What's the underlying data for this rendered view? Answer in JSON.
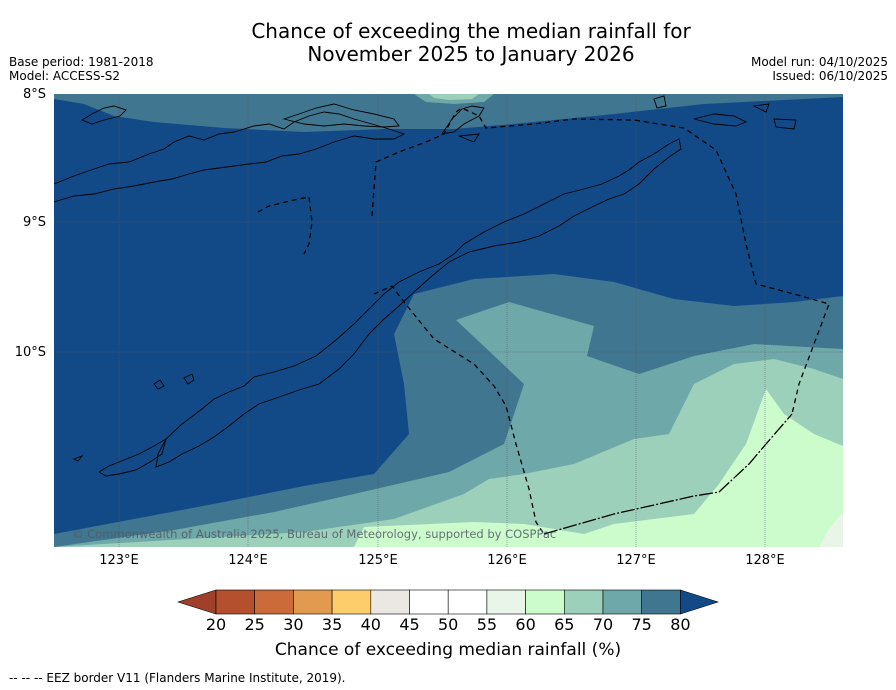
{
  "header": {
    "title_line1": "Chance of exceeding the median rainfall for",
    "title_line2": "November 2025 to January 2026",
    "base_period": "Base period: 1981-2018",
    "model": "Model: ACCESS-S2",
    "model_run": "Model run: 04/10/2025",
    "issued": "Issued: 06/10/2025"
  },
  "map": {
    "lat_labels": [
      "8°S",
      "9°S",
      "10°S"
    ],
    "lon_labels": [
      "123°E",
      "124°E",
      "125°E",
      "126°E",
      "127°E",
      "128°E"
    ],
    "copyright": "© Commonwealth of Australia 2025, Bureau of Meteorology, supported by COSPPac"
  },
  "colorbar": {
    "ticks": [
      "20",
      "25",
      "30",
      "35",
      "40",
      "45",
      "50",
      "55",
      "60",
      "65",
      "70",
      "75",
      "80"
    ],
    "label": "Chance of exceeding median rainfall (%)",
    "colors": {
      "under20": "#a0402a",
      "c20_25": "#b5502e",
      "c25_30": "#cb6b3a",
      "c30_35": "#e19a4f",
      "c35_40": "#fdcd6c",
      "c40_45": "#ebe7e3",
      "c45_50": "#ffffff",
      "c50_55": "#ffffff",
      "c55_60": "#e8f5e8",
      "c60_65": "#ccfccc",
      "c65_70": "#9cd0ba",
      "c70_75": "#6fa8a8",
      "c75_80": "#40768f",
      "over80": "#124a88"
    }
  },
  "footnote": "--  --  -- EEZ border V11 (Flanders Marine Institute, 2019)."
}
